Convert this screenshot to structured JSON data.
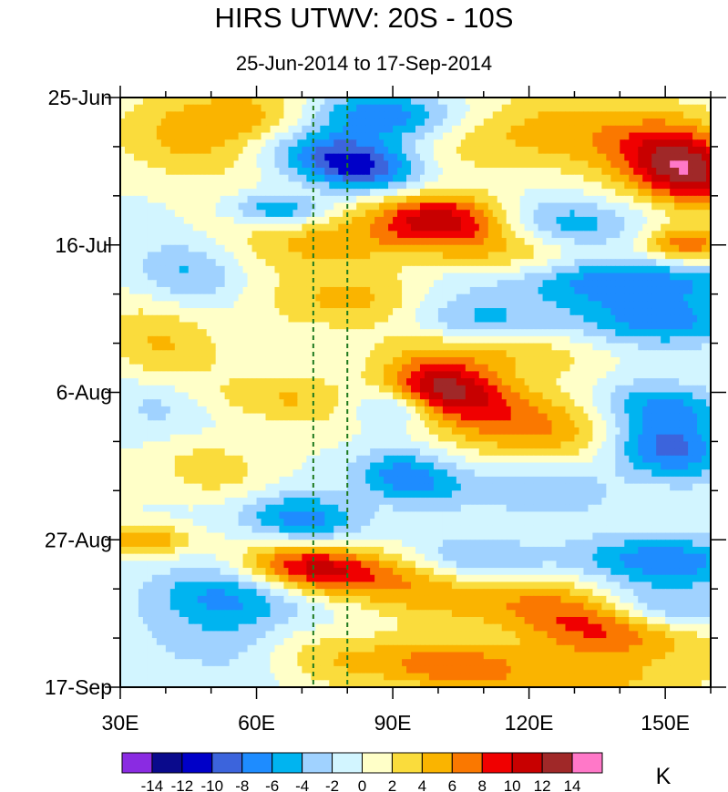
{
  "chart_data": {
    "type": "heatmap",
    "title": "HIRS UTWV: 20S - 10S",
    "subtitle": "25-Jun-2014 to 17-Sep-2014",
    "xlabel": "",
    "ylabel": "",
    "xlim": [
      30,
      160
    ],
    "ylim_days": [
      0,
      84
    ],
    "x_ticks": [
      {
        "value": 30,
        "label": "30E"
      },
      {
        "value": 60,
        "label": "60E"
      },
      {
        "value": 90,
        "label": "90E"
      },
      {
        "value": 120,
        "label": "120E"
      },
      {
        "value": 150,
        "label": "150E"
      }
    ],
    "y_ticks": [
      {
        "day": 0,
        "label": "25-Jun"
      },
      {
        "day": 21,
        "label": "16-Jul"
      },
      {
        "day": 42,
        "label": "6-Aug"
      },
      {
        "day": 63,
        "label": "27-Aug"
      },
      {
        "day": 84,
        "label": "17-Sep"
      }
    ],
    "reference_lines_lon": [
      72.5,
      80
    ],
    "colorbar": {
      "unit": "K",
      "levels": [
        -14,
        -12,
        -10,
        -8,
        -6,
        -4,
        -2,
        0,
        2,
        4,
        6,
        8,
        10,
        12,
        14
      ],
      "colors": [
        "#8a2be2",
        "#0a0a8c",
        "#0000c8",
        "#3c64dc",
        "#1e8cff",
        "#00b4f0",
        "#a0d2ff",
        "#d2f5ff",
        "#ffffc8",
        "#fadc3c",
        "#fab400",
        "#fa7800",
        "#f00000",
        "#c80000",
        "#a02828",
        "#ff78c8"
      ]
    },
    "features": [
      {
        "lon": 90,
        "day": 2.5,
        "value": -8,
        "sx": 12,
        "sy": 2.5
      },
      {
        "lon": 82,
        "day": 10,
        "value": -10,
        "sx": 9,
        "sy": 2.5
      },
      {
        "lon": 70,
        "day": 7,
        "value": -6,
        "sx": 12,
        "sy": 2.5
      },
      {
        "lon": 58,
        "day": 3.5,
        "value": 5,
        "sx": 10,
        "sy": 4
      },
      {
        "lon": 45,
        "day": 6,
        "value": 4,
        "sx": 14,
        "sy": 4
      },
      {
        "lon": 120,
        "day": 5,
        "value": 5,
        "sx": 18,
        "sy": 4
      },
      {
        "lon": 155,
        "day": 11,
        "value": 10,
        "sx": 9,
        "sy": 3.5
      },
      {
        "lon": 150,
        "day": 7,
        "value": 6,
        "sx": 10,
        "sy": 4
      },
      {
        "lon": 100,
        "day": 17,
        "value": 10,
        "sx": 10,
        "sy": 2.5
      },
      {
        "lon": 65,
        "day": 16,
        "value": -6,
        "sx": 7,
        "sy": 1.5
      },
      {
        "lon": 130,
        "day": 18,
        "value": -5,
        "sx": 12,
        "sy": 2.5
      },
      {
        "lon": 155,
        "day": 21,
        "value": 8,
        "sx": 7,
        "sy": 2
      },
      {
        "lon": 140,
        "day": 26,
        "value": -8,
        "sx": 20,
        "sy": 2.5
      },
      {
        "lon": 95,
        "day": 20,
        "value": 4,
        "sx": 14,
        "sy": 2.5
      },
      {
        "lon": 120,
        "day": 23,
        "value": 4,
        "sx": 14,
        "sy": 2.5
      },
      {
        "lon": 45,
        "day": 25,
        "value": -4,
        "sx": 9,
        "sy": 3
      },
      {
        "lon": 70,
        "day": 21,
        "value": 4,
        "sx": 10,
        "sy": 3
      },
      {
        "lon": 80,
        "day": 29,
        "value": 5,
        "sx": 12,
        "sy": 3
      },
      {
        "lon": 110,
        "day": 32,
        "value": -5,
        "sx": 14,
        "sy": 2.5
      },
      {
        "lon": 150,
        "day": 32,
        "value": -7,
        "sx": 12,
        "sy": 2.5
      },
      {
        "lon": 40,
        "day": 35,
        "value": 4,
        "sx": 10,
        "sy": 4
      },
      {
        "lon": 110,
        "day": 36,
        "value": 5,
        "sx": 16,
        "sy": 2.5
      },
      {
        "lon": 100,
        "day": 41,
        "value": 9,
        "sx": 9,
        "sy": 2.5
      },
      {
        "lon": 110,
        "day": 44,
        "value": 6,
        "sx": 12,
        "sy": 3
      },
      {
        "lon": 125,
        "day": 48,
        "value": 5,
        "sx": 14,
        "sy": 3
      },
      {
        "lon": 65,
        "day": 43,
        "value": 4,
        "sx": 12,
        "sy": 2.5
      },
      {
        "lon": 40,
        "day": 44,
        "value": -3,
        "sx": 8,
        "sy": 3
      },
      {
        "lon": 90,
        "day": 44,
        "value": -5,
        "sx": 6,
        "sy": 2
      },
      {
        "lon": 150,
        "day": 50,
        "value": -9,
        "sx": 10,
        "sy": 3
      },
      {
        "lon": 150,
        "day": 44,
        "value": -6,
        "sx": 10,
        "sy": 2.5
      },
      {
        "lon": 92,
        "day": 54,
        "value": -7,
        "sx": 8,
        "sy": 2.5
      },
      {
        "lon": 120,
        "day": 56,
        "value": -4,
        "sx": 14,
        "sy": 2.5
      },
      {
        "lon": 70,
        "day": 60,
        "value": -7,
        "sx": 10,
        "sy": 2.5
      },
      {
        "lon": 50,
        "day": 53,
        "value": 3,
        "sx": 10,
        "sy": 3
      },
      {
        "lon": 36,
        "day": 63,
        "value": 6,
        "sx": 7,
        "sy": 1.5
      },
      {
        "lon": 72,
        "day": 67,
        "value": 10,
        "sx": 10,
        "sy": 2.5
      },
      {
        "lon": 90,
        "day": 69,
        "value": 5,
        "sx": 14,
        "sy": 3
      },
      {
        "lon": 55,
        "day": 71,
        "value": -6,
        "sx": 14,
        "sy": 3
      },
      {
        "lon": 110,
        "day": 66,
        "value": -5,
        "sx": 12,
        "sy": 2.5
      },
      {
        "lon": 150,
        "day": 66,
        "value": -8,
        "sx": 12,
        "sy": 2.5
      },
      {
        "lon": 150,
        "day": 73,
        "value": -7,
        "sx": 10,
        "sy": 2.5
      },
      {
        "lon": 140,
        "day": 76,
        "value": 8,
        "sx": 14,
        "sy": 3
      },
      {
        "lon": 120,
        "day": 72,
        "value": 5,
        "sx": 16,
        "sy": 3
      },
      {
        "lon": 105,
        "day": 81,
        "value": 6,
        "sx": 12,
        "sy": 2.5
      },
      {
        "lon": 50,
        "day": 78,
        "value": -3,
        "sx": 14,
        "sy": 4
      },
      {
        "lon": 80,
        "day": 80,
        "value": 4,
        "sx": 14,
        "sy": 3
      },
      {
        "lon": 135,
        "day": 83,
        "value": 4,
        "sx": 18,
        "sy": 2.5
      }
    ]
  }
}
